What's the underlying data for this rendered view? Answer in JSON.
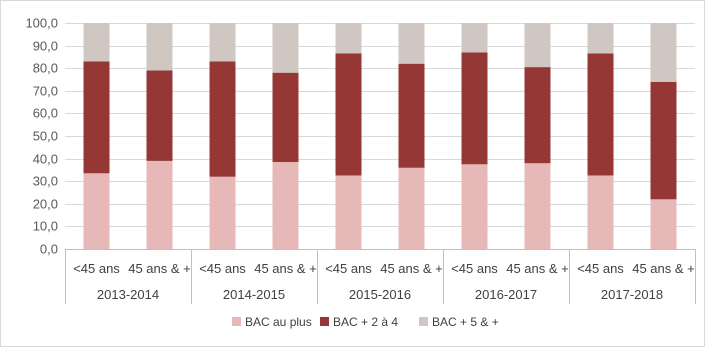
{
  "chart_data": {
    "type": "bar",
    "stacked": true,
    "group_labels": [
      "2013-2014",
      "2014-2015",
      "2015-2016",
      "2016-2017",
      "2017-2018"
    ],
    "sub_labels": [
      "<45 ans",
      "45 ans & +"
    ],
    "series": [
      {
        "name": "BAC au plus",
        "color": "#e6b9b8",
        "values": [
          33.5,
          39.0,
          32.0,
          38.5,
          32.5,
          36.0,
          37.5,
          38.0,
          32.5,
          22.0
        ]
      },
      {
        "name": "BAC + 2 à 4",
        "color": "#953735",
        "values": [
          49.5,
          40.0,
          51.0,
          39.5,
          54.0,
          46.0,
          49.5,
          42.5,
          54.0,
          52.0
        ]
      },
      {
        "name": "BAC + 5 & +",
        "color": "#d0c7c2",
        "values": [
          17.0,
          21.0,
          17.0,
          22.0,
          13.5,
          18.0,
          13.0,
          19.5,
          13.5,
          26.0
        ]
      }
    ],
    "ylim": [
      0,
      100
    ],
    "y_ticks": [
      "0,0",
      "10,0",
      "20,0",
      "30,0",
      "40,0",
      "50,0",
      "60,0",
      "70,0",
      "80,0",
      "90,0",
      "100,0"
    ],
    "grid": true,
    "legend_position": "bottom"
  }
}
